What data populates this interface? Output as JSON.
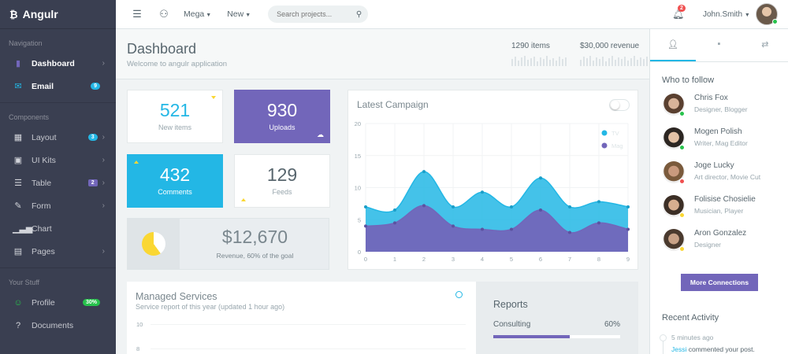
{
  "brand": {
    "name": "Angulr",
    "logo": "bitcoin-icon"
  },
  "sidebar": {
    "sections": [
      {
        "title": "Navigation"
      },
      {
        "title": "Components"
      },
      {
        "title": "Your Stuff"
      }
    ],
    "nav": [
      {
        "label": "Dashboard",
        "icon": "bar-chart-icon"
      },
      {
        "label": "Email",
        "icon": "envelope-icon",
        "badge": "9"
      }
    ],
    "components": [
      {
        "label": "Layout",
        "icon": "grid-icon",
        "badge": "3"
      },
      {
        "label": "UI Kits",
        "icon": "briefcase-icon"
      },
      {
        "label": "Table",
        "icon": "list-icon",
        "badge": "2"
      },
      {
        "label": "Form",
        "icon": "edit-icon"
      },
      {
        "label": "Chart",
        "icon": "signal-icon"
      },
      {
        "label": "Pages",
        "icon": "file-icon"
      }
    ],
    "stuff": [
      {
        "label": "Profile",
        "icon": "user-icon",
        "badge": "30%"
      },
      {
        "label": "Documents",
        "icon": "question-icon"
      }
    ]
  },
  "topbar": {
    "menu_mega": "Mega",
    "menu_new": "New",
    "search_placeholder": "Search projects...",
    "notification_count": "2",
    "user_name": "John.Smith"
  },
  "header": {
    "title": "Dashboard",
    "subtitle": "Welcome to angulr application",
    "items_stat": "1290 items",
    "revenue_stat": "$30,000 revenue"
  },
  "tiles": [
    {
      "value": "521",
      "label": "New items"
    },
    {
      "value": "930",
      "label": "Uploads"
    },
    {
      "value": "432",
      "label": "Comments"
    },
    {
      "value": "129",
      "label": "Feeds"
    }
  ],
  "revenue": {
    "value": "$12,670",
    "caption": "Revenue, 60% of the goal",
    "goal_fraction": 0.6
  },
  "chart_data": {
    "type": "area",
    "title": "Latest Campaign",
    "x": [
      0,
      1,
      2,
      3,
      4,
      5,
      6,
      7,
      8,
      9
    ],
    "ylim": [
      0,
      20
    ],
    "yticks": [
      0,
      5,
      10,
      15,
      20
    ],
    "series": [
      {
        "name": "TV",
        "color": "#23b7e5",
        "values": [
          7,
          6.5,
          12.5,
          7,
          9.3,
          7,
          11.5,
          7,
          7.8,
          7
        ]
      },
      {
        "name": "Mag",
        "color": "#7266ba",
        "values": [
          4,
          4.5,
          7.2,
          4,
          3.5,
          3.5,
          6.5,
          3,
          4.5,
          3.5
        ]
      }
    ],
    "legend": "top-right",
    "grid": true
  },
  "services": {
    "title": "Managed Services",
    "subtitle": "Service report of this year (updated 1 hour ago)",
    "y_ticks": [
      "10",
      "8"
    ]
  },
  "reports": {
    "title": "Reports",
    "item_label": "Consulting",
    "item_pct": "60%",
    "item_value": 0.6
  },
  "aside": {
    "tabs": [
      "user-icon",
      "comment-icon",
      "transfer-icon"
    ],
    "follow_title": "Who to follow",
    "people": [
      {
        "name": "Chris Fox",
        "role": "Designer, Blogger",
        "status": "#27c24c"
      },
      {
        "name": "Mogen Polish",
        "role": "Writer, Mag Editor",
        "status": "#27c24c"
      },
      {
        "name": "Joge Lucky",
        "role": "Art director, Movie Cut",
        "status": "#f05050"
      },
      {
        "name": "Folisise Chosielie",
        "role": "Musician, Player",
        "status": "#fad733"
      },
      {
        "name": "Aron Gonzalez",
        "role": "Designer",
        "status": "#fad733"
      }
    ],
    "more_button": "More Connections",
    "recent_title": "Recent Activity",
    "activity_time": "5 minutes ago",
    "activity_user": "Jessi",
    "activity_text": "commented your post."
  }
}
